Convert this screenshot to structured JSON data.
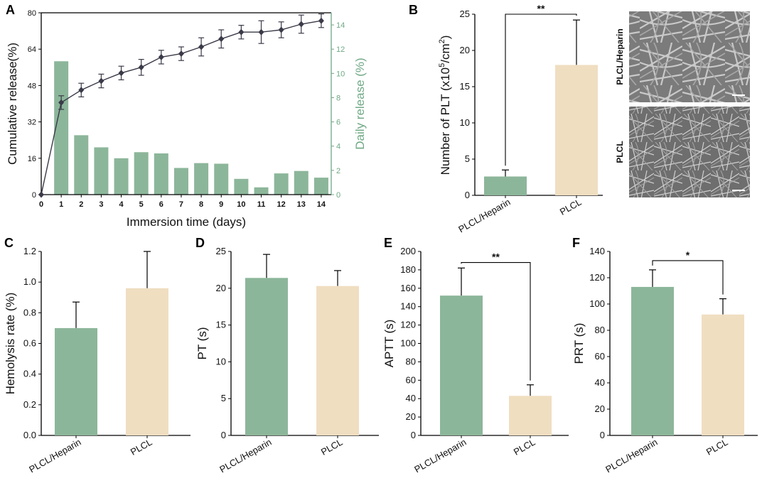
{
  "chart_data": [
    {
      "panel": "A",
      "type": "bar+line",
      "xlabel": "Immersion time (days)",
      "ylabel_left": "Cumulative release(%)",
      "ylabel_right": "Daily release (%)",
      "x": [
        0,
        1,
        2,
        3,
        4,
        5,
        6,
        7,
        8,
        9,
        10,
        11,
        12,
        13,
        14
      ],
      "ylim_left": [
        0,
        80
      ],
      "yticks_left": [
        0,
        16,
        32,
        48,
        64,
        80
      ],
      "ylim_right": [
        0,
        15
      ],
      "yticks_right": [
        0,
        2,
        4,
        6,
        8,
        10,
        12,
        14
      ],
      "series": [
        {
          "name": "Cumulative release",
          "kind": "line",
          "axis": "left",
          "x": [
            0,
            1,
            2,
            3,
            4,
            5,
            6,
            7,
            8,
            9,
            10,
            11,
            12,
            13,
            14
          ],
          "values": [
            0,
            40.5,
            46,
            50,
            53.5,
            56,
            60.5,
            62,
            65,
            68.5,
            71.5,
            71.5,
            72.5,
            75,
            76.5
          ],
          "errors": [
            0,
            3,
            3,
            3,
            3,
            3.5,
            3,
            3,
            4,
            4,
            3,
            5,
            3.5,
            4,
            3
          ]
        },
        {
          "name": "Daily release",
          "kind": "bar",
          "axis": "right",
          "x": [
            1,
            2,
            3,
            4,
            5,
            6,
            7,
            8,
            9,
            10,
            11,
            12,
            13,
            14
          ],
          "values": [
            11,
            4.9,
            3.9,
            3.0,
            3.5,
            3.4,
            2.2,
            2.6,
            2.55,
            1.3,
            0.6,
            1.75,
            1.95,
            1.4
          ]
        }
      ]
    },
    {
      "panel": "B",
      "type": "bar",
      "ylabel_pre": "Number of PLT (x10",
      "ylabel_sup": "5",
      "ylabel_mid": "/cm",
      "ylabel_sup2": "2",
      "ylabel_post": ")",
      "categories": [
        "PLCL/Heparin",
        "PLCL"
      ],
      "values": [
        2.6,
        18.0
      ],
      "errors": [
        0.9,
        6.2
      ],
      "ylim": [
        0,
        25
      ],
      "yticks": [
        0,
        5,
        10,
        15,
        20,
        25
      ],
      "significance": "**",
      "image_labels": [
        "PLCL/Heparin",
        "PLCL"
      ]
    },
    {
      "panel": "C",
      "type": "bar",
      "ylabel": "Hemolysis rate (%)",
      "categories": [
        "PLCL/Heparin",
        "PLCL"
      ],
      "values": [
        0.7,
        0.96
      ],
      "errors": [
        0.17,
        0.24
      ],
      "ylim": [
        0,
        1.2
      ],
      "yticks": [
        "0.0",
        "0.2",
        "0.4",
        "0.6",
        "0.8",
        "1.0",
        "1.2"
      ]
    },
    {
      "panel": "D",
      "type": "bar",
      "ylabel": "PT (s)",
      "categories": [
        "PLCL/Heparin",
        "PLCL"
      ],
      "values": [
        21.4,
        20.3
      ],
      "errors": [
        3.2,
        2.1
      ],
      "ylim": [
        0,
        25
      ],
      "yticks": [
        0,
        5,
        10,
        15,
        20,
        25
      ]
    },
    {
      "panel": "E",
      "type": "bar",
      "ylabel": "APTT (s)",
      "categories": [
        "PLCL/Heparin",
        "PLCL"
      ],
      "values": [
        152,
        43
      ],
      "errors": [
        30,
        12
      ],
      "ylim": [
        0,
        200
      ],
      "yticks": [
        0,
        20,
        40,
        60,
        80,
        100,
        120,
        140,
        160,
        180,
        200
      ],
      "significance": "**"
    },
    {
      "panel": "F",
      "type": "bar",
      "ylabel": "PRT (s)",
      "categories": [
        "PLCL/Heparin",
        "PLCL"
      ],
      "values": [
        113,
        92
      ],
      "errors": [
        13,
        12
      ],
      "ylim": [
        0,
        140
      ],
      "yticks": [
        0,
        20,
        40,
        60,
        80,
        100,
        120,
        140
      ],
      "significance": "*"
    }
  ],
  "colors": {
    "green": "#8cb69a",
    "tan": "#f0dec1",
    "axis_green": "#6fa885",
    "line": "#3a3a48"
  }
}
